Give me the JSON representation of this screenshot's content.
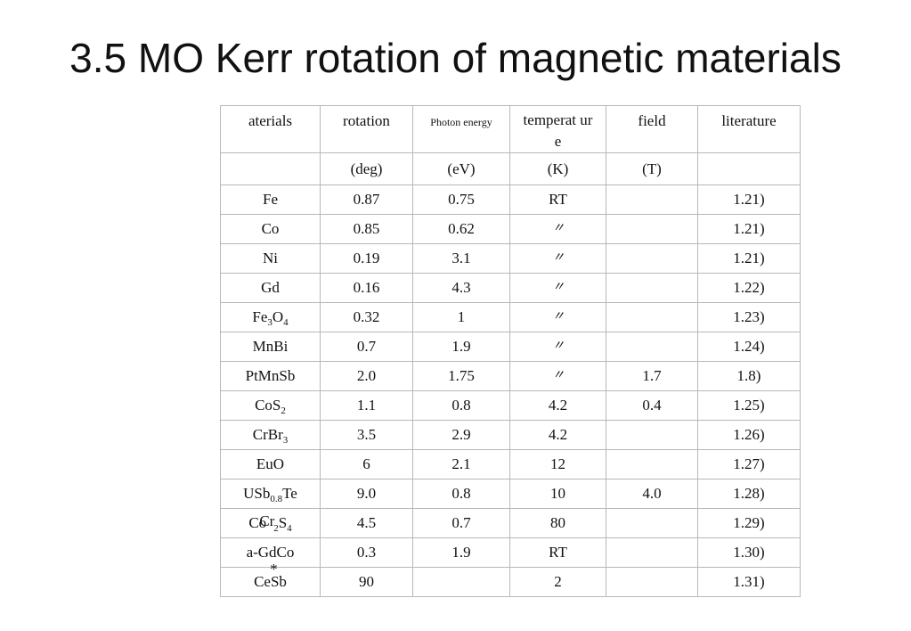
{
  "title": "3.5 MO Kerr rotation of magnetic materials",
  "headers": [
    "aterials",
    "rotation",
    "Photon energy",
    "temperat ure",
    "field",
    "literature"
  ],
  "units": [
    "",
    "(deg)",
    "(eV)",
    "(K)",
    "(T)",
    ""
  ],
  "ditto_mark": "〃",
  "rows": [
    {
      "material": "Fe",
      "rotation": "0.87",
      "energy": "0.75",
      "temperature": "RT",
      "field": "",
      "literature": "1.21)"
    },
    {
      "material": "Co",
      "rotation": "0.85",
      "energy": "0.62",
      "temperature": "〃",
      "field": "",
      "literature": "1.21)"
    },
    {
      "material": "Ni",
      "rotation": "0.19",
      "energy": "3.1",
      "temperature": "〃",
      "field": "",
      "literature": "1.21)"
    },
    {
      "material": "Gd",
      "rotation": "0.16",
      "energy": "4.3",
      "temperature": "〃",
      "field": "",
      "literature": "1.22)"
    },
    {
      "material_main": "Fe",
      "material_sub1": "3",
      "material_mid": "O",
      "material_sub2": "4",
      "rotation": "0.32",
      "energy": "1",
      "temperature": "〃",
      "field": "",
      "literature": "1.23)"
    },
    {
      "material": "MnBi",
      "rotation": "0.7",
      "energy": "1.9",
      "temperature": "〃",
      "field": "",
      "literature": "1.24)"
    },
    {
      "material": "PtMnSb",
      "rotation": "2.0",
      "energy": "1.75",
      "temperature": "〃",
      "field": "1.7",
      "literature": "1.8)"
    },
    {
      "material_main": "CoS",
      "material_sub1": "2",
      "rotation": "1.1",
      "energy": "0.8",
      "temperature": "4.2",
      "field": "0.4",
      "literature": "1.25)"
    },
    {
      "material_main": "CrBr",
      "material_sub1": "3",
      "rotation": "3.5",
      "energy": "2.9",
      "temperature": "4.2",
      "field": "",
      "literature": "1.26)"
    },
    {
      "material": "EuO",
      "rotation": "6",
      "energy": "2.1",
      "temperature": "12",
      "field": "",
      "literature": "1.27)"
    },
    {
      "material_main": "USb",
      "material_sub1": "0.8",
      "material_mid": "Te",
      "rotation": "9.0",
      "energy": "0.8",
      "temperature": "10",
      "field": "4.0",
      "literature": "1.28)"
    },
    {
      "material_a": "Co",
      "material_b": "Cr",
      "material_sub1": "2",
      "material_mid": "S",
      "material_sub2": "4",
      "rotation": "4.5",
      "energy": "0.7",
      "temperature": "80",
      "field": "",
      "literature": "1.29)"
    },
    {
      "material": "a-GdCo",
      "rotation": "0.3",
      "energy": "1.9",
      "temperature": "RT",
      "field": "",
      "literature": "1.30)"
    },
    {
      "material": "CeSb",
      "material_mark": "*",
      "rotation": "90",
      "energy": "",
      "temperature": "2",
      "field": "",
      "literature": "1.31)"
    }
  ]
}
